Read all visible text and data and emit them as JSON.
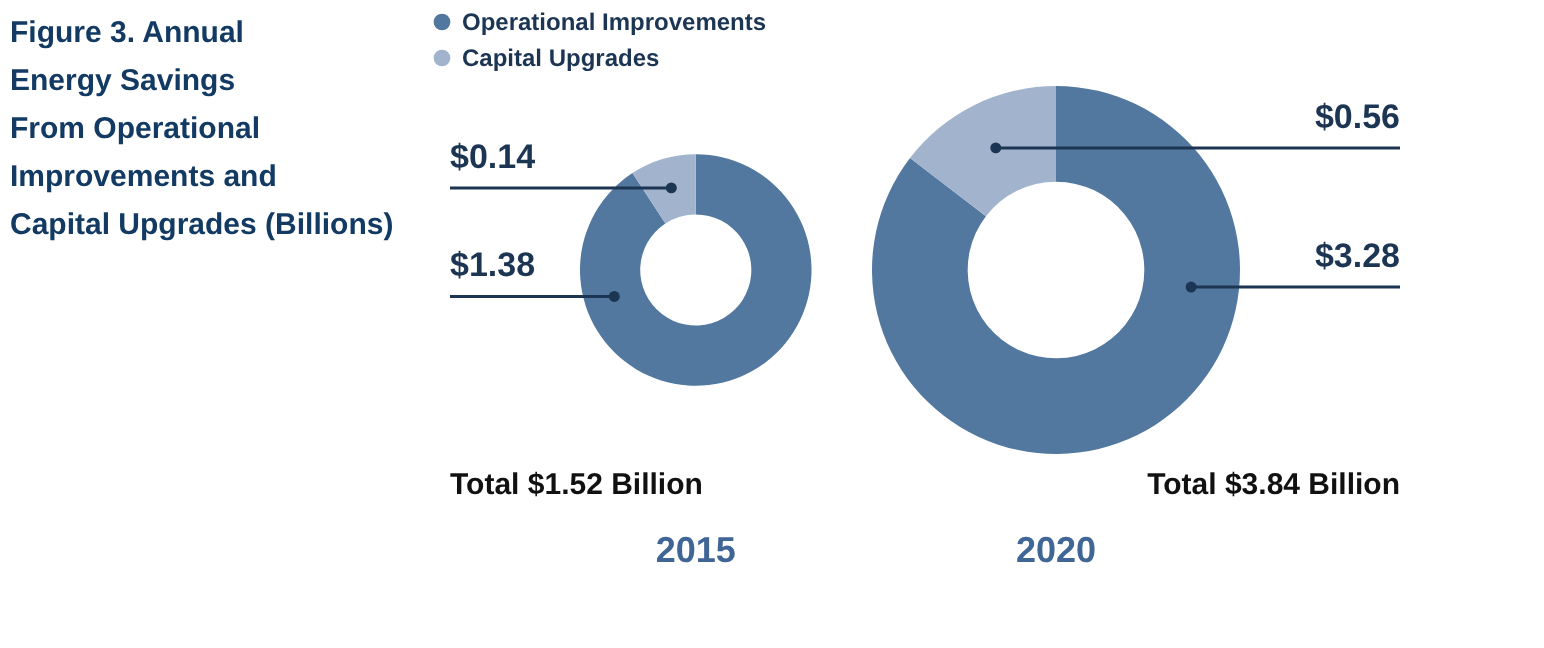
{
  "chart_data": [
    {
      "type": "donut",
      "title": "Figure 3. Annual Energy Savings From Operational Improvements and Capital Upgrades (Billions)",
      "xlabel": "2015",
      "annotations": [
        "Total $1.52 Billion"
      ],
      "legend": "top",
      "categories": [
        "Operational Improvements",
        "Capital Upgrades"
      ],
      "values": [
        1.38,
        0.14
      ],
      "colors": [
        "#52789f",
        "#a1b3cd"
      ],
      "value_labels": [
        "$1.38",
        "$0.14"
      ]
    },
    {
      "type": "donut",
      "xlabel": "2020",
      "annotations": [
        "Total $3.84 Billion"
      ],
      "categories": [
        null,
        null
      ],
      "values": [
        3.28,
        0.56
      ],
      "colors": [
        "#52789f",
        "#a1b3cd"
      ],
      "value_labels": [
        "$3.28",
        "$0.56"
      ]
    }
  ]
}
